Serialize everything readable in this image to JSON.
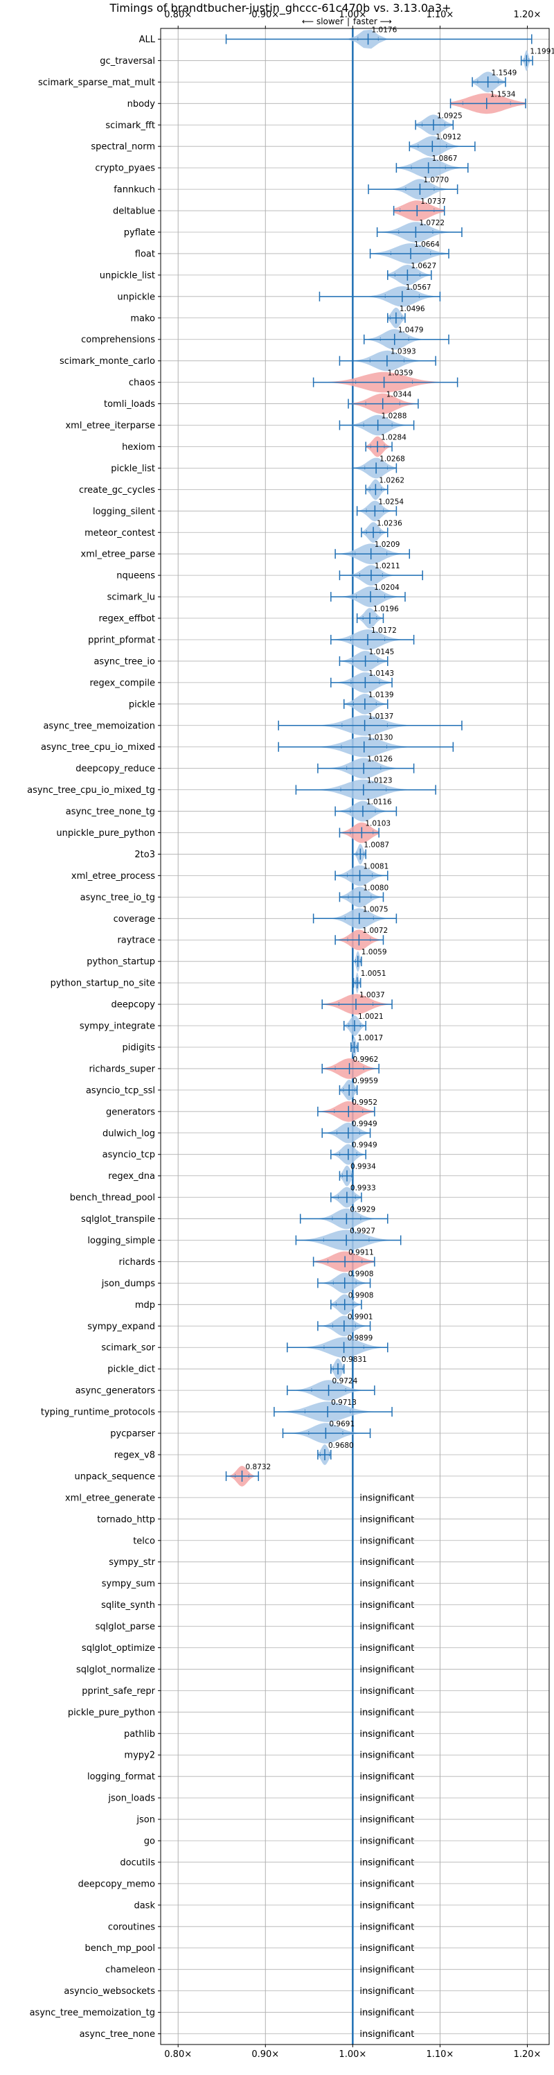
{
  "chart_data": {
    "type": "violin",
    "title": "Timings of brandtbucher-justin_ghccc-61c470b vs. 3.13.0a3+",
    "direction_labels": {
      "slower": "⟵ slower",
      "faster": "faster ⟶",
      "separator": "|"
    },
    "x_ticks": [
      {
        "value": 0.8,
        "label": "0.80×"
      },
      {
        "value": 0.9,
        "label": "0.90×"
      },
      {
        "value": 1.0,
        "label": "1.00×"
      },
      {
        "value": 1.1,
        "label": "1.10×"
      },
      {
        "value": 1.2,
        "label": "1.20×"
      }
    ],
    "xlim": [
      0.78,
      1.225
    ],
    "grid": true,
    "colors": {
      "normal": "#a8c8e8",
      "regression": "#f4a6a6",
      "line": "#1f6fb4",
      "grid": "#b0b0b0"
    },
    "benchmarks": [
      {
        "name": "ALL",
        "mean": 1.0176,
        "label": "1.0176",
        "min": 0.855,
        "max": 1.205,
        "spread": 0.018,
        "color": "blue"
      },
      {
        "name": "gc_traversal",
        "mean": 1.1991,
        "label": "1.1991",
        "min": 1.193,
        "max": 1.206,
        "spread": 0.004,
        "color": "blue"
      },
      {
        "name": "scimark_sparse_mat_mult",
        "mean": 1.1549,
        "label": "1.1549",
        "min": 1.137,
        "max": 1.175,
        "spread": 0.018,
        "color": "blue"
      },
      {
        "name": "nbody",
        "mean": 1.1534,
        "label": "1.1534",
        "min": 1.112,
        "max": 1.198,
        "spread": 0.042,
        "color": "red"
      },
      {
        "name": "scimark_fft",
        "mean": 1.0925,
        "label": "1.0925",
        "min": 1.072,
        "max": 1.115,
        "spread": 0.02,
        "color": "blue"
      },
      {
        "name": "spectral_norm",
        "mean": 1.0912,
        "label": "1.0912",
        "min": 1.065,
        "max": 1.14,
        "spread": 0.025,
        "color": "blue"
      },
      {
        "name": "crypto_pyaes",
        "mean": 1.0867,
        "label": "1.0867",
        "min": 1.05,
        "max": 1.132,
        "spread": 0.03,
        "color": "blue"
      },
      {
        "name": "fannkuch",
        "mean": 1.077,
        "label": "1.0770",
        "min": 1.018,
        "max": 1.12,
        "spread": 0.025,
        "color": "blue"
      },
      {
        "name": "deltablue",
        "mean": 1.0737,
        "label": "1.0737",
        "min": 1.047,
        "max": 1.105,
        "spread": 0.03,
        "color": "red"
      },
      {
        "name": "pyflate",
        "mean": 1.0722,
        "label": "1.0722",
        "min": 1.028,
        "max": 1.125,
        "spread": 0.03,
        "color": "blue"
      },
      {
        "name": "float",
        "mean": 1.0664,
        "label": "1.0664",
        "min": 1.02,
        "max": 1.11,
        "spread": 0.035,
        "color": "blue"
      },
      {
        "name": "unpickle_list",
        "mean": 1.0627,
        "label": "1.0627",
        "min": 1.04,
        "max": 1.09,
        "spread": 0.022,
        "color": "blue"
      },
      {
        "name": "unpickle",
        "mean": 1.0567,
        "label": "1.0567",
        "min": 0.962,
        "max": 1.1,
        "spread": 0.03,
        "color": "blue"
      },
      {
        "name": "mako",
        "mean": 1.0496,
        "label": "1.0496",
        "min": 1.04,
        "max": 1.06,
        "spread": 0.01,
        "color": "blue"
      },
      {
        "name": "comprehensions",
        "mean": 1.0479,
        "label": "1.0479",
        "min": 1.013,
        "max": 1.11,
        "spread": 0.025,
        "color": "blue"
      },
      {
        "name": "scimark_monte_carlo",
        "mean": 1.0393,
        "label": "1.0393",
        "min": 0.985,
        "max": 1.095,
        "spread": 0.03,
        "color": "blue"
      },
      {
        "name": "chaos",
        "mean": 1.0359,
        "label": "1.0359",
        "min": 0.955,
        "max": 1.12,
        "spread": 0.05,
        "color": "red"
      },
      {
        "name": "tomli_loads",
        "mean": 1.0344,
        "label": "1.0344",
        "min": 0.995,
        "max": 1.075,
        "spread": 0.03,
        "color": "red"
      },
      {
        "name": "xml_etree_iterparse",
        "mean": 1.0288,
        "label": "1.0288",
        "min": 0.985,
        "max": 1.07,
        "spread": 0.025,
        "color": "blue"
      },
      {
        "name": "hexiom",
        "mean": 1.0284,
        "label": "1.0284",
        "min": 1.015,
        "max": 1.045,
        "spread": 0.012,
        "color": "red"
      },
      {
        "name": "pickle_list",
        "mean": 1.0268,
        "label": "1.0268",
        "min": 1.0,
        "max": 1.05,
        "spread": 0.02,
        "color": "blue"
      },
      {
        "name": "create_gc_cycles",
        "mean": 1.0262,
        "label": "1.0262",
        "min": 1.015,
        "max": 1.04,
        "spread": 0.01,
        "color": "blue"
      },
      {
        "name": "logging_silent",
        "mean": 1.0254,
        "label": "1.0254",
        "min": 1.005,
        "max": 1.05,
        "spread": 0.015,
        "color": "blue"
      },
      {
        "name": "meteor_contest",
        "mean": 1.0236,
        "label": "1.0236",
        "min": 1.01,
        "max": 1.04,
        "spread": 0.012,
        "color": "blue"
      },
      {
        "name": "xml_etree_parse",
        "mean": 1.0209,
        "label": "1.0209",
        "min": 0.98,
        "max": 1.065,
        "spread": 0.028,
        "color": "blue"
      },
      {
        "name": "nqueens",
        "mean": 1.0211,
        "label": "1.0211",
        "min": 0.985,
        "max": 1.08,
        "spread": 0.02,
        "color": "blue"
      },
      {
        "name": "scimark_lu",
        "mean": 1.0204,
        "label": "1.0204",
        "min": 0.975,
        "max": 1.06,
        "spread": 0.025,
        "color": "blue"
      },
      {
        "name": "regex_effbot",
        "mean": 1.0196,
        "label": "1.0196",
        "min": 1.005,
        "max": 1.035,
        "spread": 0.012,
        "color": "blue"
      },
      {
        "name": "pprint_pformat",
        "mean": 1.0172,
        "label": "1.0172",
        "min": 0.975,
        "max": 1.07,
        "spread": 0.03,
        "color": "blue"
      },
      {
        "name": "async_tree_io",
        "mean": 1.0145,
        "label": "1.0145",
        "min": 0.985,
        "max": 1.04,
        "spread": 0.022,
        "color": "blue"
      },
      {
        "name": "regex_compile",
        "mean": 1.0143,
        "label": "1.0143",
        "min": 0.975,
        "max": 1.045,
        "spread": 0.025,
        "color": "blue"
      },
      {
        "name": "pickle",
        "mean": 1.0139,
        "label": "1.0139",
        "min": 0.99,
        "max": 1.04,
        "spread": 0.02,
        "color": "blue"
      },
      {
        "name": "async_tree_memoization",
        "mean": 1.0137,
        "label": "1.0137",
        "min": 0.915,
        "max": 1.125,
        "spread": 0.04,
        "color": "blue"
      },
      {
        "name": "async_tree_cpu_io_mixed",
        "mean": 1.013,
        "label": "1.0130",
        "min": 0.915,
        "max": 1.115,
        "spread": 0.04,
        "color": "blue"
      },
      {
        "name": "deepcopy_reduce",
        "mean": 1.0126,
        "label": "1.0126",
        "min": 0.96,
        "max": 1.07,
        "spread": 0.03,
        "color": "blue"
      },
      {
        "name": "async_tree_cpu_io_mixed_tg",
        "mean": 1.0123,
        "label": "1.0123",
        "min": 0.935,
        "max": 1.095,
        "spread": 0.04,
        "color": "blue"
      },
      {
        "name": "async_tree_none_tg",
        "mean": 1.0116,
        "label": "1.0116",
        "min": 0.98,
        "max": 1.05,
        "spread": 0.022,
        "color": "blue"
      },
      {
        "name": "unpickle_pure_python",
        "mean": 1.0103,
        "label": "1.0103",
        "min": 0.985,
        "max": 1.03,
        "spread": 0.02,
        "color": "red"
      },
      {
        "name": "2to3",
        "mean": 1.0087,
        "label": "1.0087",
        "min": 1.0,
        "max": 1.015,
        "spread": 0.006,
        "color": "blue"
      },
      {
        "name": "xml_etree_process",
        "mean": 1.0081,
        "label": "1.0081",
        "min": 0.98,
        "max": 1.04,
        "spread": 0.022,
        "color": "blue"
      },
      {
        "name": "async_tree_io_tg",
        "mean": 1.008,
        "label": "1.0080",
        "min": 0.985,
        "max": 1.035,
        "spread": 0.02,
        "color": "blue"
      },
      {
        "name": "coverage",
        "mean": 1.0075,
        "label": "1.0075",
        "min": 0.955,
        "max": 1.05,
        "spread": 0.025,
        "color": "blue"
      },
      {
        "name": "raytrace",
        "mean": 1.0072,
        "label": "1.0072",
        "min": 0.98,
        "max": 1.035,
        "spread": 0.02,
        "color": "red"
      },
      {
        "name": "python_startup",
        "mean": 1.0059,
        "label": "1.0059",
        "min": 1.0,
        "max": 1.01,
        "spread": 0.004,
        "color": "blue"
      },
      {
        "name": "python_startup_no_site",
        "mean": 1.0051,
        "label": "1.0051",
        "min": 1.001,
        "max": 1.009,
        "spread": 0.003,
        "color": "blue"
      },
      {
        "name": "deepcopy",
        "mean": 1.0037,
        "label": "1.0037",
        "min": 0.965,
        "max": 1.045,
        "spread": 0.03,
        "color": "red"
      },
      {
        "name": "sympy_integrate",
        "mean": 1.0021,
        "label": "1.0021",
        "min": 0.99,
        "max": 1.015,
        "spread": 0.01,
        "color": "blue"
      },
      {
        "name": "pidigits",
        "mean": 1.0017,
        "label": "1.0017",
        "min": 0.998,
        "max": 1.006,
        "spread": 0.004,
        "color": "blue"
      },
      {
        "name": "richards_super",
        "mean": 0.9962,
        "label": "0.9962",
        "min": 0.965,
        "max": 1.03,
        "spread": 0.025,
        "color": "red"
      },
      {
        "name": "asyncio_tcp_ssl",
        "mean": 0.9959,
        "label": "0.9959",
        "min": 0.985,
        "max": 1.005,
        "spread": 0.01,
        "color": "blue"
      },
      {
        "name": "generators",
        "mean": 0.9952,
        "label": "0.9952",
        "min": 0.96,
        "max": 1.025,
        "spread": 0.025,
        "color": "red"
      },
      {
        "name": "dulwich_log",
        "mean": 0.9949,
        "label": "0.9949",
        "min": 0.965,
        "max": 1.02,
        "spread": 0.02,
        "color": "blue"
      },
      {
        "name": "asyncio_tcp",
        "mean": 0.9949,
        "label": "0.9949",
        "min": 0.975,
        "max": 1.015,
        "spread": 0.015,
        "color": "blue"
      },
      {
        "name": "regex_dna",
        "mean": 0.9934,
        "label": "0.9934",
        "min": 0.985,
        "max": 1.0,
        "spread": 0.008,
        "color": "blue"
      },
      {
        "name": "bench_thread_pool",
        "mean": 0.9933,
        "label": "0.9933",
        "min": 0.975,
        "max": 1.01,
        "spread": 0.015,
        "color": "blue"
      },
      {
        "name": "sqlglot_transpile",
        "mean": 0.9929,
        "label": "0.9929",
        "min": 0.94,
        "max": 1.04,
        "spread": 0.025,
        "color": "blue"
      },
      {
        "name": "logging_simple",
        "mean": 0.9927,
        "label": "0.9927",
        "min": 0.935,
        "max": 1.055,
        "spread": 0.04,
        "color": "blue"
      },
      {
        "name": "richards",
        "mean": 0.9911,
        "label": "0.9911",
        "min": 0.955,
        "max": 1.025,
        "spread": 0.03,
        "color": "red"
      },
      {
        "name": "json_dumps",
        "mean": 0.9908,
        "label": "0.9908",
        "min": 0.96,
        "max": 1.02,
        "spread": 0.02,
        "color": "blue"
      },
      {
        "name": "mdp",
        "mean": 0.9908,
        "label": "0.9908",
        "min": 0.975,
        "max": 1.01,
        "spread": 0.015,
        "color": "blue"
      },
      {
        "name": "sympy_expand",
        "mean": 0.9901,
        "label": "0.9901",
        "min": 0.96,
        "max": 1.02,
        "spread": 0.02,
        "color": "blue"
      },
      {
        "name": "scimark_sor",
        "mean": 0.9899,
        "label": "0.9899",
        "min": 0.925,
        "max": 1.04,
        "spread": 0.035,
        "color": "blue"
      },
      {
        "name": "pickle_dict",
        "mean": 0.9831,
        "label": "0.9831",
        "min": 0.975,
        "max": 0.99,
        "spread": 0.008,
        "color": "blue"
      },
      {
        "name": "async_generators",
        "mean": 0.9724,
        "label": "0.9724",
        "min": 0.925,
        "max": 1.025,
        "spread": 0.03,
        "color": "blue"
      },
      {
        "name": "typing_runtime_protocols",
        "mean": 0.9713,
        "label": "0.9713",
        "min": 0.91,
        "max": 1.045,
        "spread": 0.04,
        "color": "blue"
      },
      {
        "name": "pycparser",
        "mean": 0.9691,
        "label": "0.9691",
        "min": 0.92,
        "max": 1.02,
        "spread": 0.03,
        "color": "blue"
      },
      {
        "name": "regex_v8",
        "mean": 0.968,
        "label": "0.9680",
        "min": 0.96,
        "max": 0.975,
        "spread": 0.008,
        "color": "blue"
      },
      {
        "name": "unpack_sequence",
        "mean": 0.8732,
        "label": "0.8732",
        "min": 0.855,
        "max": 0.892,
        "spread": 0.012,
        "color": "red"
      },
      {
        "name": "xml_etree_generate",
        "insignificant": true,
        "label": "insignificant"
      },
      {
        "name": "tornado_http",
        "insignificant": true,
        "label": "insignificant"
      },
      {
        "name": "telco",
        "insignificant": true,
        "label": "insignificant"
      },
      {
        "name": "sympy_str",
        "insignificant": true,
        "label": "insignificant"
      },
      {
        "name": "sympy_sum",
        "insignificant": true,
        "label": "insignificant"
      },
      {
        "name": "sqlite_synth",
        "insignificant": true,
        "label": "insignificant"
      },
      {
        "name": "sqlglot_parse",
        "insignificant": true,
        "label": "insignificant"
      },
      {
        "name": "sqlglot_optimize",
        "insignificant": true,
        "label": "insignificant"
      },
      {
        "name": "sqlglot_normalize",
        "insignificant": true,
        "label": "insignificant"
      },
      {
        "name": "pprint_safe_repr",
        "insignificant": true,
        "label": "insignificant"
      },
      {
        "name": "pickle_pure_python",
        "insignificant": true,
        "label": "insignificant"
      },
      {
        "name": "pathlib",
        "insignificant": true,
        "label": "insignificant"
      },
      {
        "name": "mypy2",
        "insignificant": true,
        "label": "insignificant"
      },
      {
        "name": "logging_format",
        "insignificant": true,
        "label": "insignificant"
      },
      {
        "name": "json_loads",
        "insignificant": true,
        "label": "insignificant"
      },
      {
        "name": "json",
        "insignificant": true,
        "label": "insignificant"
      },
      {
        "name": "go",
        "insignificant": true,
        "label": "insignificant"
      },
      {
        "name": "docutils",
        "insignificant": true,
        "label": "insignificant"
      },
      {
        "name": "deepcopy_memo",
        "insignificant": true,
        "label": "insignificant"
      },
      {
        "name": "dask",
        "insignificant": true,
        "label": "insignificant"
      },
      {
        "name": "coroutines",
        "insignificant": true,
        "label": "insignificant"
      },
      {
        "name": "bench_mp_pool",
        "insignificant": true,
        "label": "insignificant"
      },
      {
        "name": "chameleon",
        "insignificant": true,
        "label": "insignificant"
      },
      {
        "name": "asyncio_websockets",
        "insignificant": true,
        "label": "insignificant"
      },
      {
        "name": "async_tree_memoization_tg",
        "insignificant": true,
        "label": "insignificant"
      },
      {
        "name": "async_tree_none",
        "insignificant": true,
        "label": "insignificant"
      }
    ]
  }
}
